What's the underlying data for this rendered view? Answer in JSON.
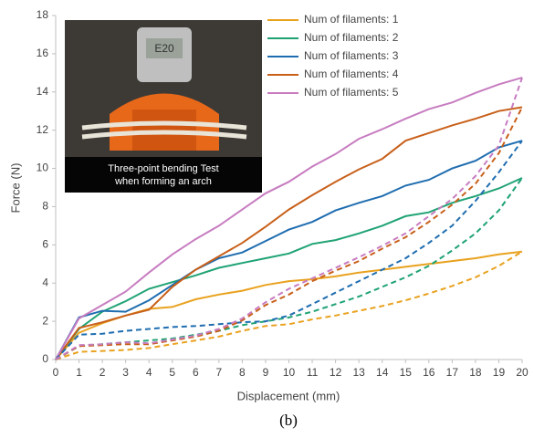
{
  "chart_data": {
    "type": "line",
    "x_label": "Displacement (mm)",
    "y_label": "Force (N)",
    "x": [
      0,
      1,
      2,
      3,
      4,
      5,
      6,
      7,
      8,
      9,
      10,
      11,
      12,
      13,
      14,
      15,
      16,
      17,
      18,
      19,
      20
    ],
    "xlim": [
      0,
      20
    ],
    "xticks": [
      0,
      1,
      2,
      3,
      4,
      5,
      6,
      7,
      8,
      9,
      10,
      11,
      12,
      13,
      14,
      15,
      16,
      17,
      18,
      19,
      20
    ],
    "ylim": [
      0,
      18
    ],
    "yticks": [
      0,
      2,
      4,
      6,
      8,
      10,
      12,
      14,
      16,
      18
    ],
    "grid": false,
    "legend": "upper right",
    "series": [
      {
        "name": "Num of filaments: 1",
        "color": "#e9a21f",
        "values": [
          0,
          1.4,
          1.9,
          2.3,
          2.65,
          2.75,
          3.15,
          3.4,
          3.6,
          3.9,
          4.1,
          4.2,
          4.35,
          4.55,
          4.7,
          4.85,
          5.0,
          5.15,
          5.3,
          5.5,
          5.65
        ]
      },
      {
        "name": "Num of filaments: 2",
        "color": "#1fa374",
        "values": [
          0,
          1.6,
          2.5,
          3.05,
          3.7,
          4.05,
          4.4,
          4.8,
          5.05,
          5.3,
          5.55,
          6.05,
          6.25,
          6.6,
          7.0,
          7.5,
          7.7,
          8.2,
          8.55,
          8.95,
          9.5
        ]
      },
      {
        "name": "Num of filaments: 3",
        "color": "#1f6db0",
        "values": [
          0,
          2.2,
          2.55,
          2.5,
          3.1,
          3.9,
          4.7,
          5.3,
          5.6,
          6.2,
          6.8,
          7.2,
          7.8,
          8.2,
          8.55,
          9.1,
          9.4,
          10.0,
          10.4,
          11.1,
          11.45
        ]
      },
      {
        "name": "Num of filaments: 4",
        "color": "#c8601a",
        "values": [
          0,
          1.65,
          1.95,
          2.3,
          2.6,
          3.8,
          4.7,
          5.4,
          6.1,
          6.95,
          7.85,
          8.6,
          9.3,
          9.95,
          10.5,
          11.45,
          11.85,
          12.25,
          12.6,
          13.0,
          13.2
        ]
      },
      {
        "name": "Num of filaments: 5",
        "color": "#c77cc0",
        "values": [
          0,
          2.15,
          2.85,
          3.55,
          4.55,
          5.5,
          6.3,
          7.0,
          7.85,
          8.7,
          9.3,
          10.1,
          10.75,
          11.55,
          12.05,
          12.6,
          13.1,
          13.45,
          13.95,
          14.4,
          14.75
        ]
      },
      {
        "color": "#e9a21f",
        "dash": true,
        "values": [
          0,
          0.4,
          0.45,
          0.5,
          0.6,
          0.8,
          1.0,
          1.2,
          1.5,
          1.75,
          1.85,
          2.1,
          2.3,
          2.55,
          2.8,
          3.1,
          3.45,
          3.85,
          4.3,
          4.9,
          5.65
        ]
      },
      {
        "color": "#1fa374",
        "dash": true,
        "values": [
          0,
          0.7,
          0.8,
          0.9,
          1.0,
          1.1,
          1.3,
          1.5,
          1.8,
          2.0,
          2.2,
          2.5,
          2.9,
          3.3,
          3.8,
          4.3,
          4.9,
          5.7,
          6.6,
          7.8,
          9.5
        ]
      },
      {
        "color": "#1f6db0",
        "dash": true,
        "values": [
          0,
          1.3,
          1.35,
          1.5,
          1.6,
          1.7,
          1.75,
          1.85,
          1.95,
          2.0,
          2.3,
          2.9,
          3.5,
          4.1,
          4.7,
          5.3,
          6.1,
          7.0,
          8.3,
          9.8,
          11.45
        ]
      },
      {
        "color": "#c8601a",
        "dash": true,
        "values": [
          0,
          0.7,
          0.75,
          0.8,
          0.8,
          1.0,
          1.2,
          1.5,
          2.05,
          2.85,
          3.4,
          4.1,
          4.65,
          5.15,
          5.8,
          6.4,
          7.2,
          8.1,
          9.2,
          10.8,
          13.2
        ]
      },
      {
        "color": "#c77cc0",
        "dash": true,
        "values": [
          0,
          0.75,
          0.8,
          0.9,
          0.85,
          1.05,
          1.25,
          1.6,
          2.15,
          3.0,
          3.7,
          4.25,
          4.8,
          5.35,
          5.95,
          6.6,
          7.5,
          8.4,
          9.6,
          11.2,
          14.75
        ]
      }
    ],
    "inset_caption": [
      "Three-point bending Test",
      "when forming an arch"
    ],
    "panel_label": "(b)"
  }
}
